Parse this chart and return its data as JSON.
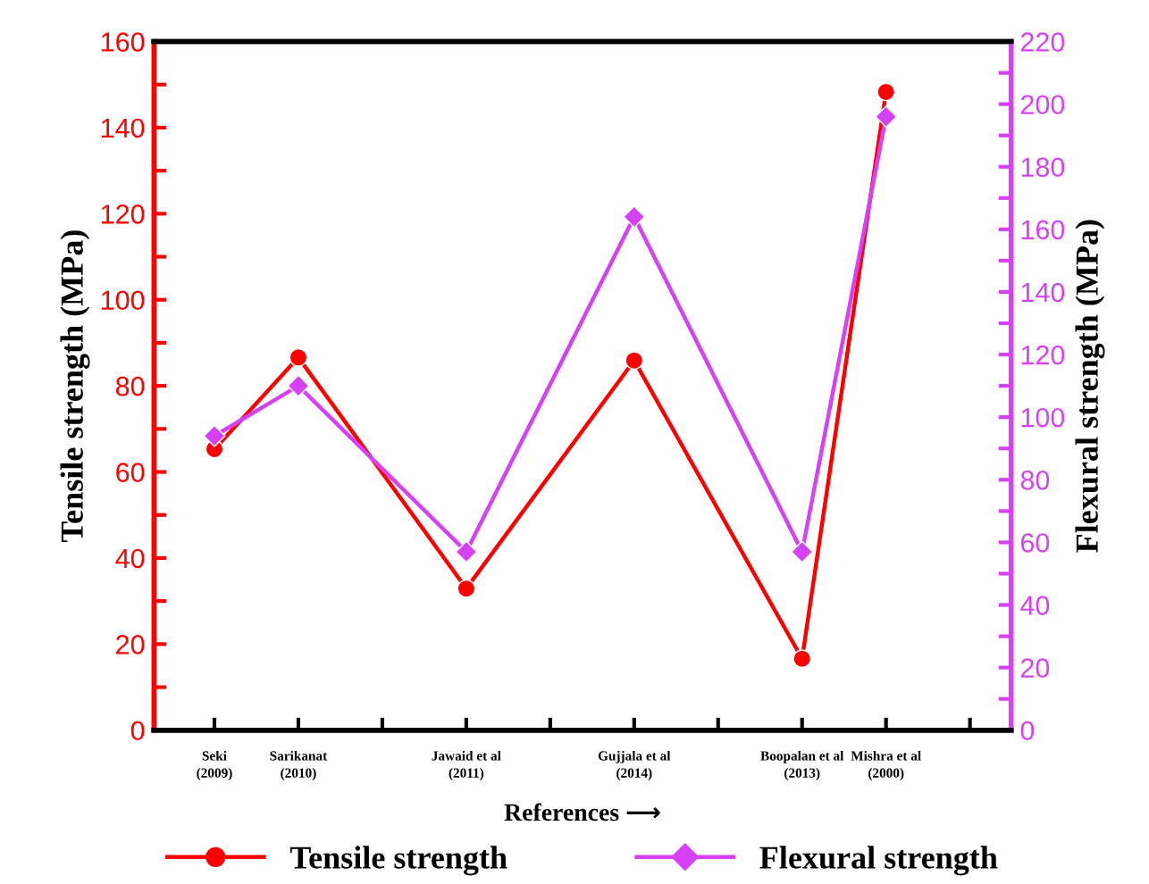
{
  "chart_data": {
    "type": "line",
    "categories": [
      "Seki\n(2009)",
      "Sarikanat\n(2010)",
      null,
      "Jawaid et al\n(2011)",
      null,
      "Gujjala et al\n(2014)",
      null,
      "Boopalan et al\n(2013)",
      "Mishra et al\n(2000)",
      null
    ],
    "series": [
      {
        "name": "Tensile strength",
        "color": "#ff0000",
        "marker": "circle",
        "values": [
          65.3,
          86.6,
          null,
          32.9,
          null,
          85.9,
          null,
          16.6,
          148.3,
          null
        ]
      },
      {
        "name": "Flexural strength",
        "color": "#d641f6",
        "marker": "diamond",
        "axis": "y2",
        "values": [
          94,
          110,
          null,
          57,
          null,
          164,
          null,
          57,
          196,
          null
        ]
      }
    ],
    "xlabel": "References ⟶",
    "ylabel": "Tensile strength (MPa)",
    "y2label": "Flexural strength (MPa)",
    "ylim": [
      0,
      160
    ],
    "yticks": [
      0,
      {
        "value": 10,
        "label": null
      },
      20,
      {
        "value": 30,
        "label": null
      },
      40,
      {
        "value": 50,
        "label": null
      },
      60,
      {
        "value": 70,
        "label": null
      },
      80,
      {
        "value": 90,
        "label": null
      },
      100,
      {
        "value": 110,
        "label": null
      },
      120,
      {
        "value": 130,
        "label": null
      },
      140,
      {
        "value": 150,
        "label": null
      },
      160
    ],
    "y2lim": [
      0,
      220
    ],
    "y2ticks": [
      0,
      {
        "value": 10,
        "label": null
      },
      20,
      {
        "value": 30,
        "label": null
      },
      40,
      {
        "value": 50,
        "label": null
      },
      60,
      {
        "value": 70,
        "label": null
      },
      80,
      {
        "value": 90,
        "label": null
      },
      100,
      {
        "value": 110,
        "label": null
      },
      120,
      {
        "value": 130,
        "label": null
      },
      140,
      {
        "value": 150,
        "label": null
      },
      160,
      {
        "value": 170,
        "label": null
      },
      180,
      {
        "value": 190,
        "label": null
      },
      200,
      {
        "value": 210,
        "label": null
      },
      220
    ],
    "grid": false,
    "legend": "bottom",
    "line_style": "solid"
  }
}
